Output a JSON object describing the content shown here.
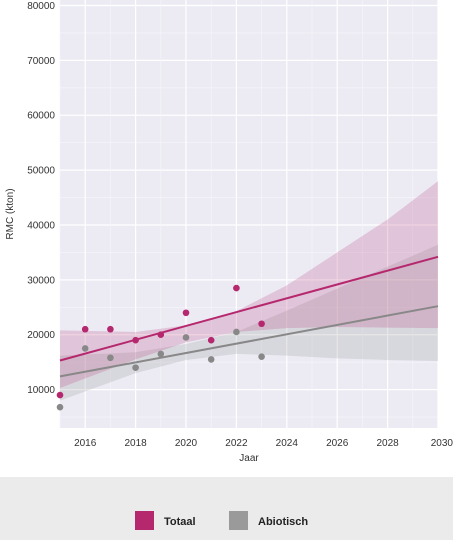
{
  "chart_data": {
    "type": "scatter",
    "xlabel": "Jaar",
    "ylabel": "RMC (kton)",
    "xlim": [
      2015,
      2030
    ],
    "ylim": [
      3000,
      81000
    ],
    "x_ticks": [
      2016,
      2018,
      2020,
      2022,
      2024,
      2026,
      2028,
      2030
    ],
    "y_ticks": [
      10000,
      20000,
      30000,
      40000,
      50000,
      60000,
      70000,
      80000
    ],
    "grid": true,
    "legend_position": "bottom-center",
    "series": [
      {
        "name": "Totaal",
        "color": "#b5286e",
        "points": [
          {
            "x": 2015,
            "y": 9000
          },
          {
            "x": 2016,
            "y": 21000
          },
          {
            "x": 2017,
            "y": 21000
          },
          {
            "x": 2018,
            "y": 19000
          },
          {
            "x": 2019,
            "y": 20000
          },
          {
            "x": 2020,
            "y": 24000
          },
          {
            "x": 2021,
            "y": 19000
          },
          {
            "x": 2022,
            "y": 28500
          },
          {
            "x": 2023,
            "y": 22000
          }
        ],
        "trend": {
          "x": [
            2015,
            2030
          ],
          "y": [
            15300,
            34200
          ]
        },
        "confidence_band": {
          "x": [
            2015,
            2018,
            2020,
            2022,
            2024,
            2026,
            2028,
            2030
          ],
          "upper": [
            20800,
            20500,
            21700,
            24300,
            29000,
            35000,
            41000,
            48000
          ],
          "lower": [
            10300,
            15500,
            18600,
            20500,
            21200,
            21400,
            21300,
            21200
          ]
        }
      },
      {
        "name": "Abiotisch",
        "color": "#888888",
        "points": [
          {
            "x": 2015,
            "y": 6800
          },
          {
            "x": 2016,
            "y": 17500
          },
          {
            "x": 2017,
            "y": 15800
          },
          {
            "x": 2018,
            "y": 14000
          },
          {
            "x": 2019,
            "y": 16500
          },
          {
            "x": 2020,
            "y": 19500
          },
          {
            "x": 2021,
            "y": 15500
          },
          {
            "x": 2022,
            "y": 20500
          },
          {
            "x": 2023,
            "y": 16000
          }
        ],
        "trend": {
          "x": [
            2015,
            2030
          ],
          "y": [
            12400,
            25200
          ]
        },
        "confidence_band": {
          "x": [
            2015,
            2018,
            2020,
            2022,
            2024,
            2026,
            2028,
            2030
          ],
          "upper": [
            16200,
            16800,
            18300,
            20500,
            24400,
            28400,
            32400,
            36400
          ],
          "lower": [
            8000,
            13000,
            15400,
            16500,
            16200,
            15700,
            15400,
            15200
          ]
        }
      }
    ]
  }
}
